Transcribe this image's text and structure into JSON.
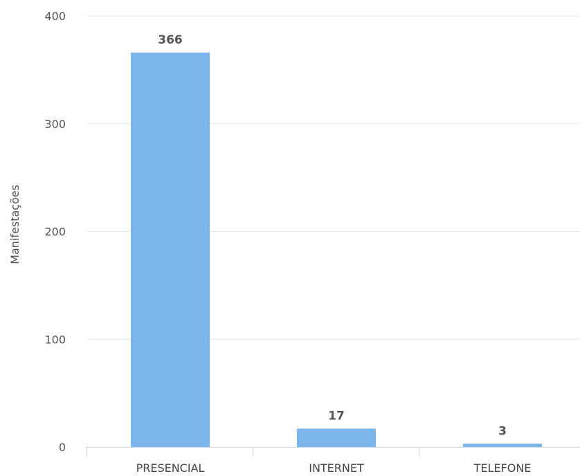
{
  "chart_data": {
    "type": "bar",
    "categories": [
      "PRESENCIAL",
      "INTERNET",
      "TELEFONE"
    ],
    "values": [
      366,
      17,
      3
    ],
    "data_labels": [
      "366",
      "17",
      "3"
    ],
    "title": "",
    "xlabel": "",
    "ylabel": "Manifestações",
    "ylim": [
      0,
      400
    ],
    "yticks": [
      "0",
      "100",
      "200",
      "300",
      "400"
    ],
    "grid": true,
    "legend": "none",
    "colors": {
      "bar": "#7cb5ec",
      "grid": "#e6e6e6",
      "axis": "#ccd6eb"
    }
  }
}
